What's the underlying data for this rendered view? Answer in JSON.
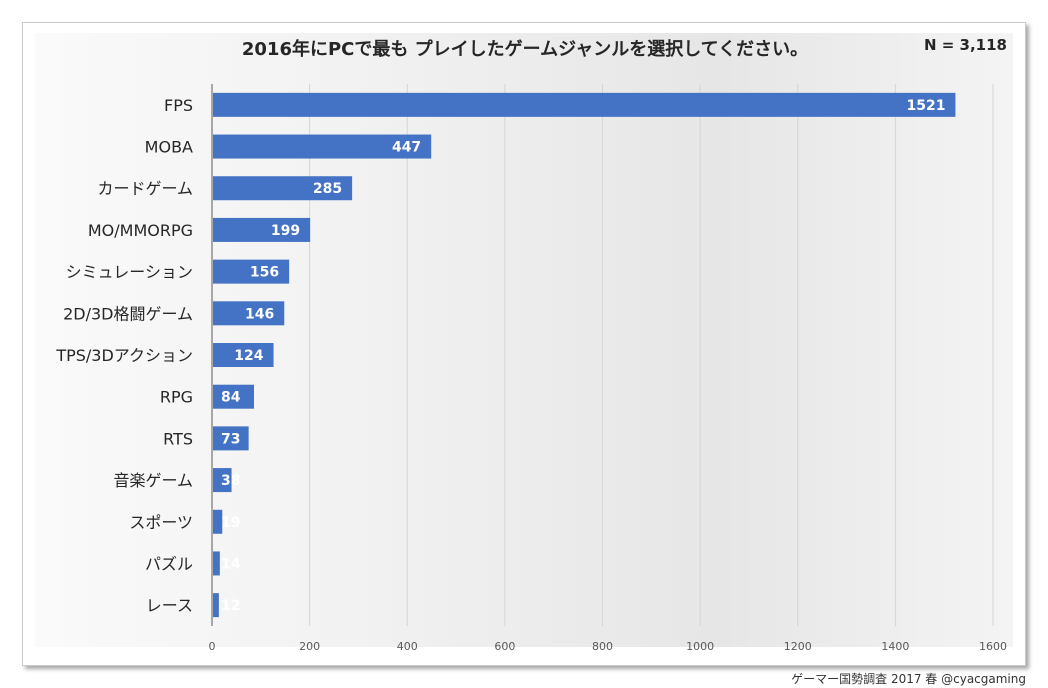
{
  "chart_data": {
    "type": "bar",
    "orientation": "horizontal",
    "title": "2016年にPCで最も プレイしたゲームジャンルを選択してください。",
    "annotation": "N = 3,118",
    "categories": [
      "FPS",
      "MOBA",
      "カードゲーム",
      "MO/MMORPG",
      "シミュレーション",
      "2D/3D格闘ゲーム",
      "TPS/3Dアクション",
      "RPG",
      "RTS",
      "音楽ゲーム",
      "スポーツ",
      "パズル",
      "レース"
    ],
    "values": [
      1521,
      447,
      285,
      199,
      156,
      146,
      124,
      84,
      73,
      38,
      19,
      14,
      12
    ],
    "xlim": [
      0,
      1600
    ],
    "xticks": [
      0,
      200,
      400,
      600,
      800,
      1000,
      1200,
      1400,
      1600
    ],
    "grid": true,
    "bar_color": "#4472c4",
    "legend": "none"
  },
  "source": "ゲーマー国勢調査 2017 春 @cyacgaming"
}
